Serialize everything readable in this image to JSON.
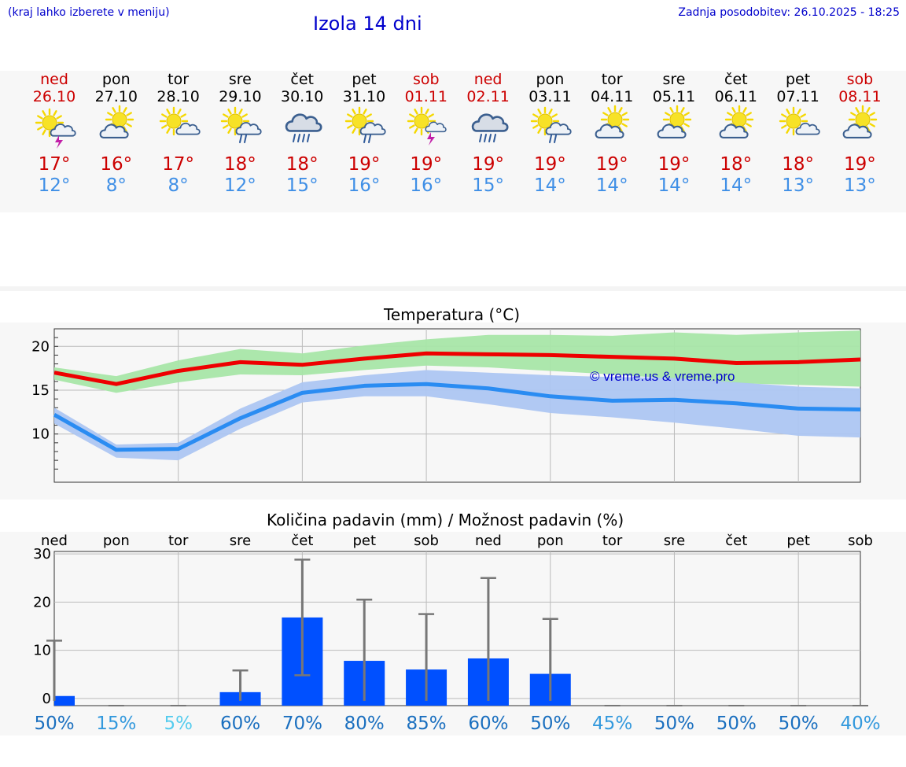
{
  "header": {
    "hint": "(kraj lahko izberete v meniju)",
    "title": "Izola 14 dni",
    "updated": "Zadnja posodobitev: 26.10.2025 - 18:25"
  },
  "days": [
    {
      "name": "ned",
      "date": "26.10",
      "weekend": true,
      "icon": "sun-cloud-thunder-icon",
      "tmax": "17°",
      "tmin": "12°"
    },
    {
      "name": "pon",
      "date": "27.10",
      "weekend": false,
      "icon": "partly-cloudy-icon",
      "tmax": "16°",
      "tmin": "8°"
    },
    {
      "name": "tor",
      "date": "28.10",
      "weekend": false,
      "icon": "sun-small-cloud-icon",
      "tmax": "17°",
      "tmin": "8°"
    },
    {
      "name": "sre",
      "date": "29.10",
      "weekend": false,
      "icon": "sun-cloud-rain-icon",
      "tmax": "18°",
      "tmin": "12°"
    },
    {
      "name": "čet",
      "date": "30.10",
      "weekend": false,
      "icon": "cloud-rain-icon",
      "tmax": "18°",
      "tmin": "15°"
    },
    {
      "name": "pet",
      "date": "31.10",
      "weekend": false,
      "icon": "sun-cloud-rain-icon",
      "tmax": "19°",
      "tmin": "16°"
    },
    {
      "name": "sob",
      "date": "01.11",
      "weekend": true,
      "icon": "sun-thunder-icon",
      "tmax": "19°",
      "tmin": "16°"
    },
    {
      "name": "ned",
      "date": "02.11",
      "weekend": true,
      "icon": "cloud-rain-icon",
      "tmax": "19°",
      "tmin": "15°"
    },
    {
      "name": "pon",
      "date": "03.11",
      "weekend": false,
      "icon": "sun-cloud-rain-icon",
      "tmax": "19°",
      "tmin": "14°"
    },
    {
      "name": "tor",
      "date": "04.11",
      "weekend": false,
      "icon": "partly-cloudy-icon",
      "tmax": "19°",
      "tmin": "14°"
    },
    {
      "name": "sre",
      "date": "05.11",
      "weekend": false,
      "icon": "partly-cloudy-icon",
      "tmax": "19°",
      "tmin": "14°"
    },
    {
      "name": "čet",
      "date": "06.11",
      "weekend": false,
      "icon": "partly-cloudy-icon",
      "tmax": "18°",
      "tmin": "14°"
    },
    {
      "name": "pet",
      "date": "07.11",
      "weekend": false,
      "icon": "sun-small-cloud-icon",
      "tmax": "18°",
      "tmin": "13°"
    },
    {
      "name": "sob",
      "date": "08.11",
      "weekend": true,
      "icon": "partly-cloudy-icon",
      "tmax": "19°",
      "tmin": "13°"
    }
  ],
  "colors": {
    "weekday": "#000000",
    "weekend": "#cc0000",
    "tmax_line": "#ee0000",
    "tmax_band": "#a8e6a8",
    "tmin_line": "#2a8cf2",
    "tmin_band": "#adc6f2",
    "bar": "#0050ff",
    "error": "#777777",
    "pct_dark": "#1a6fbf",
    "pct_mid": "#3399dd",
    "pct_light": "#55ccee"
  },
  "chart_data": [
    {
      "type": "line",
      "title": "Temperatura (°C)",
      "xlabel": "",
      "ylabel": "",
      "ylim": [
        4.5,
        22
      ],
      "yticks": [
        10,
        15,
        20
      ],
      "x": [
        0,
        1,
        2,
        3,
        4,
        5,
        6,
        7,
        8,
        9,
        10,
        11,
        12,
        13
      ],
      "series": [
        {
          "name": "Tmax",
          "values": [
            17.0,
            15.7,
            17.2,
            18.2,
            17.9,
            18.6,
            19.2,
            19.1,
            19.0,
            18.8,
            18.6,
            18.1,
            18.2,
            18.5
          ],
          "band_low": [
            16.2,
            14.7,
            15.9,
            16.8,
            16.7,
            17.3,
            17.8,
            17.6,
            17.2,
            16.8,
            16.3,
            15.8,
            15.6,
            15.4
          ],
          "band_high": [
            17.6,
            16.6,
            18.4,
            19.7,
            19.2,
            20.1,
            20.8,
            21.3,
            21.3,
            21.2,
            21.6,
            21.3,
            21.6,
            21.8
          ]
        },
        {
          "name": "Tmin",
          "values": [
            12.2,
            8.2,
            8.3,
            11.8,
            14.7,
            15.5,
            15.7,
            15.2,
            14.3,
            13.8,
            13.9,
            13.5,
            12.9,
            12.8
          ],
          "band_low": [
            11.2,
            7.3,
            7.0,
            10.6,
            13.6,
            14.3,
            14.3,
            13.4,
            12.4,
            11.9,
            11.3,
            10.6,
            9.8,
            9.6
          ],
          "band_high": [
            13.0,
            8.8,
            9.0,
            12.9,
            15.9,
            16.7,
            17.3,
            17.0,
            16.7,
            16.5,
            16.4,
            15.9,
            15.4,
            15.2
          ]
        }
      ],
      "annotation": "© vreme.us & vreme.pro"
    },
    {
      "type": "bar",
      "title": "Količina padavin (mm) / Možnost padavin (%)",
      "xlabel": "",
      "ylabel": "",
      "ylim": [
        -1.5,
        30.5
      ],
      "yticks": [
        0,
        10,
        20,
        30
      ],
      "categories": [
        "ned",
        "pon",
        "tor",
        "sre",
        "čet",
        "pet",
        "sob",
        "ned",
        "pon",
        "tor",
        "sre",
        "čet",
        "pet",
        "sob"
      ],
      "values": [
        0.5,
        0,
        0,
        1.3,
        16.8,
        7.8,
        6.0,
        8.3,
        5.1,
        0,
        0,
        0,
        0,
        0
      ],
      "error_low": [
        0,
        0,
        0,
        0,
        4.8,
        0,
        0,
        0,
        0,
        0,
        0,
        0,
        0,
        0
      ],
      "error_high": [
        12.0,
        0,
        0,
        5.8,
        28.8,
        20.5,
        17.5,
        25.0,
        16.5,
        0,
        0,
        0,
        0,
        0
      ],
      "probability": [
        "50%",
        "15%",
        "5%",
        "60%",
        "70%",
        "80%",
        "85%",
        "60%",
        "50%",
        "45%",
        "50%",
        "50%",
        "50%",
        "40%"
      ]
    }
  ]
}
